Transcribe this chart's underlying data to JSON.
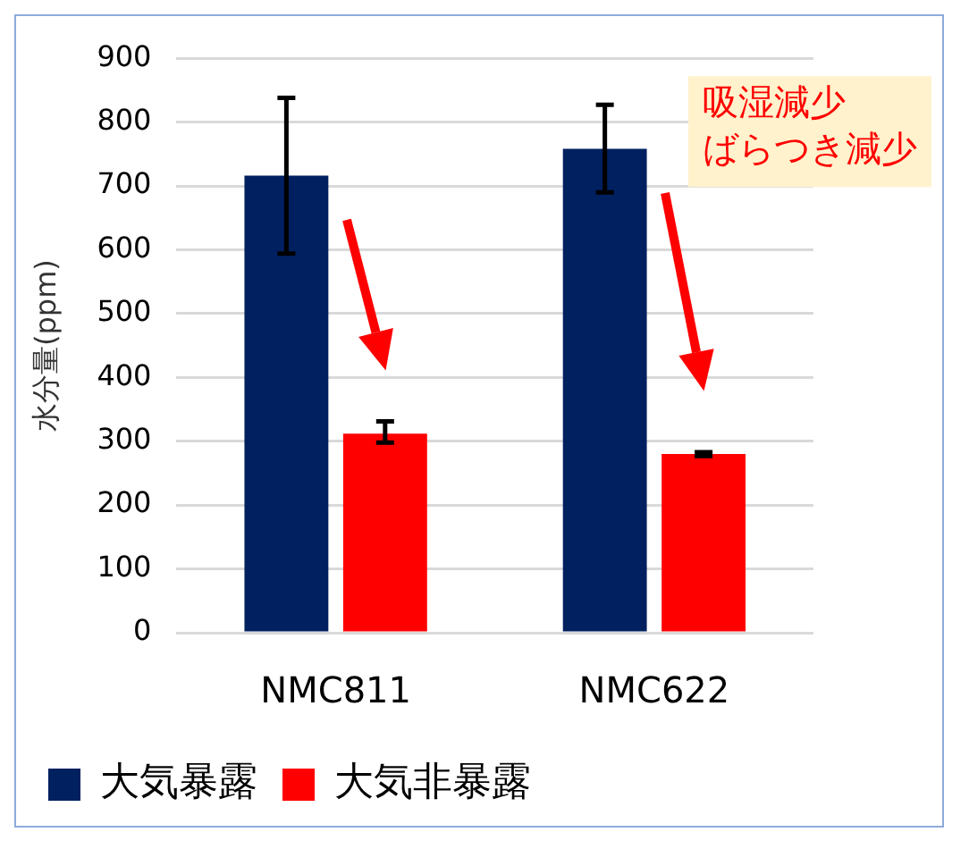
{
  "chart_data": {
    "type": "bar",
    "ylabel": "水分量(ppm)",
    "categories": [
      "NMC811",
      "NMC622"
    ],
    "series": [
      {
        "name": "大気暴露",
        "color": "#002060",
        "values": [
          716,
          758
        ],
        "errors": [
          [
            594,
            838
          ],
          [
            690,
            827
          ]
        ]
      },
      {
        "name": "大気非暴露",
        "color": "#ff0000",
        "values": [
          312,
          280
        ],
        "errors": [
          [
            298,
            331
          ],
          [
            277,
            283
          ]
        ]
      }
    ],
    "ylim": [
      0,
      900
    ],
    "yticks": [
      0,
      100,
      200,
      300,
      400,
      500,
      600,
      700,
      800,
      900
    ],
    "grid": "y",
    "legend": "bottom",
    "annotations": [
      "吸湿減少",
      "ばらつき減少"
    ]
  }
}
